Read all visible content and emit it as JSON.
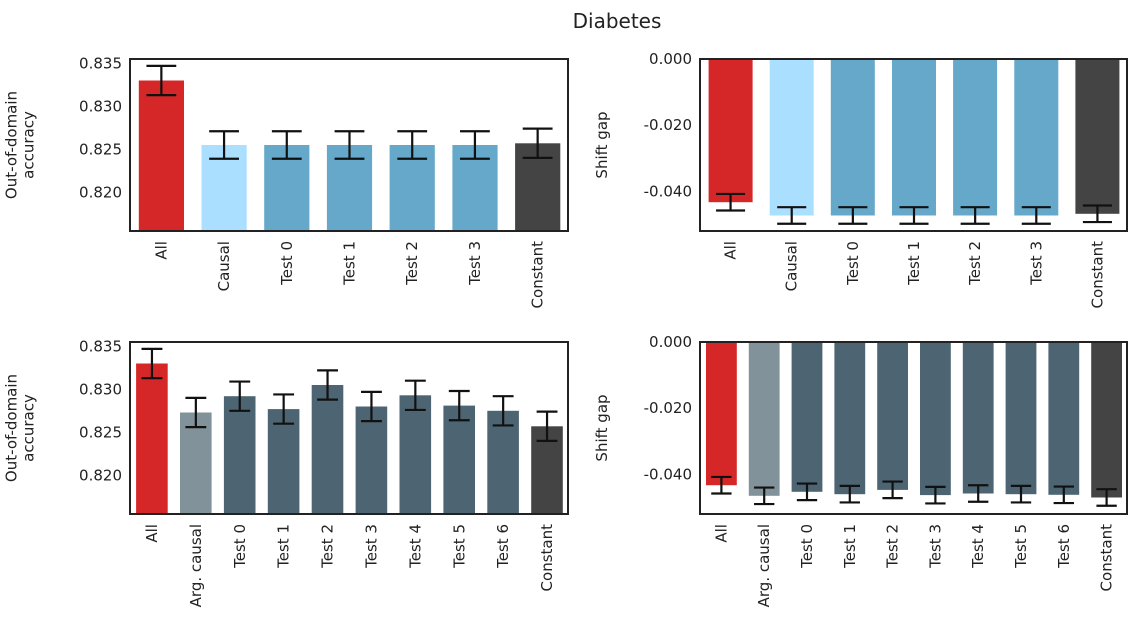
{
  "figure": {
    "title": "Diabetes"
  },
  "chart_data": [
    {
      "type": "bar",
      "ylabel": [
        "Out-of-domain",
        "accuracy"
      ],
      "ylim": [
        0.8155,
        0.8355
      ],
      "yticks": [
        "0.835",
        "0.830",
        "0.825",
        "0.820"
      ],
      "categories": [
        "All",
        "Causal",
        "Test 0",
        "Test 1",
        "Test 2",
        "Test 3",
        "Constant"
      ],
      "values": [
        0.833,
        0.8255,
        0.8255,
        0.8255,
        0.8255,
        0.8255,
        0.8257
      ],
      "errors": [
        0.0017,
        0.0016,
        0.0016,
        0.0016,
        0.0016,
        0.0016,
        0.0017
      ],
      "colors": [
        "#d62728",
        "#aadfff",
        "#66a8c9",
        "#66a8c9",
        "#66a8c9",
        "#66a8c9",
        "#444444"
      ]
    },
    {
      "type": "bar",
      "ylabel": [
        "Shift gap"
      ],
      "ylim": [
        -0.052,
        0.0
      ],
      "yticks": [
        "0.000",
        "-0.020",
        "-0.040"
      ],
      "categories": [
        "All",
        "Causal",
        "Test 0",
        "Test 1",
        "Test 2",
        "Test 3",
        "Constant"
      ],
      "values": [
        -0.0433,
        -0.0473,
        -0.0473,
        -0.0473,
        -0.0473,
        -0.0473,
        -0.0468
      ],
      "errors": [
        0.0025,
        0.0025,
        0.0025,
        0.0025,
        0.0025,
        0.0025,
        0.0025
      ],
      "colors": [
        "#d62728",
        "#aadfff",
        "#66a8c9",
        "#66a8c9",
        "#66a8c9",
        "#66a8c9",
        "#444444"
      ]
    },
    {
      "type": "bar",
      "ylabel": [
        "Out-of-domain",
        "accuracy"
      ],
      "ylim": [
        0.8155,
        0.8355
      ],
      "yticks": [
        "0.835",
        "0.830",
        "0.825",
        "0.820"
      ],
      "categories": [
        "All",
        "Arg. causal",
        "Test 0",
        "Test 1",
        "Test 2",
        "Test 3",
        "Test 4",
        "Test 5",
        "Test 6",
        "Constant"
      ],
      "values": [
        0.833,
        0.8273,
        0.8292,
        0.8277,
        0.8305,
        0.828,
        0.8293,
        0.8281,
        0.8275,
        0.8257
      ],
      "errors": [
        0.0017,
        0.0017,
        0.0017,
        0.0017,
        0.0017,
        0.0017,
        0.0017,
        0.0017,
        0.0017,
        0.0017
      ],
      "colors": [
        "#d62728",
        "#82929a",
        "#4d6573",
        "#4d6573",
        "#4d6573",
        "#4d6573",
        "#4d6573",
        "#4d6573",
        "#4d6573",
        "#444444"
      ]
    },
    {
      "type": "bar",
      "ylabel": [
        "Shift gap"
      ],
      "ylim": [
        -0.052,
        0.0
      ],
      "yticks": [
        "0.000",
        "-0.020",
        "-0.040"
      ],
      "categories": [
        "All",
        "Arg. causal",
        "Test 0",
        "Test 1",
        "Test 2",
        "Test 3",
        "Test 4",
        "Test 5",
        "Test 6",
        "Constant"
      ],
      "values": [
        -0.0433,
        -0.0465,
        -0.0453,
        -0.046,
        -0.0447,
        -0.0463,
        -0.0458,
        -0.046,
        -0.0462,
        -0.047
      ],
      "errors": [
        0.0025,
        0.0025,
        0.0025,
        0.0025,
        0.0025,
        0.0025,
        0.0025,
        0.0025,
        0.0025,
        0.0025
      ],
      "colors": [
        "#d62728",
        "#82929a",
        "#4d6573",
        "#4d6573",
        "#4d6573",
        "#4d6573",
        "#4d6573",
        "#4d6573",
        "#4d6573",
        "#444444"
      ]
    }
  ]
}
